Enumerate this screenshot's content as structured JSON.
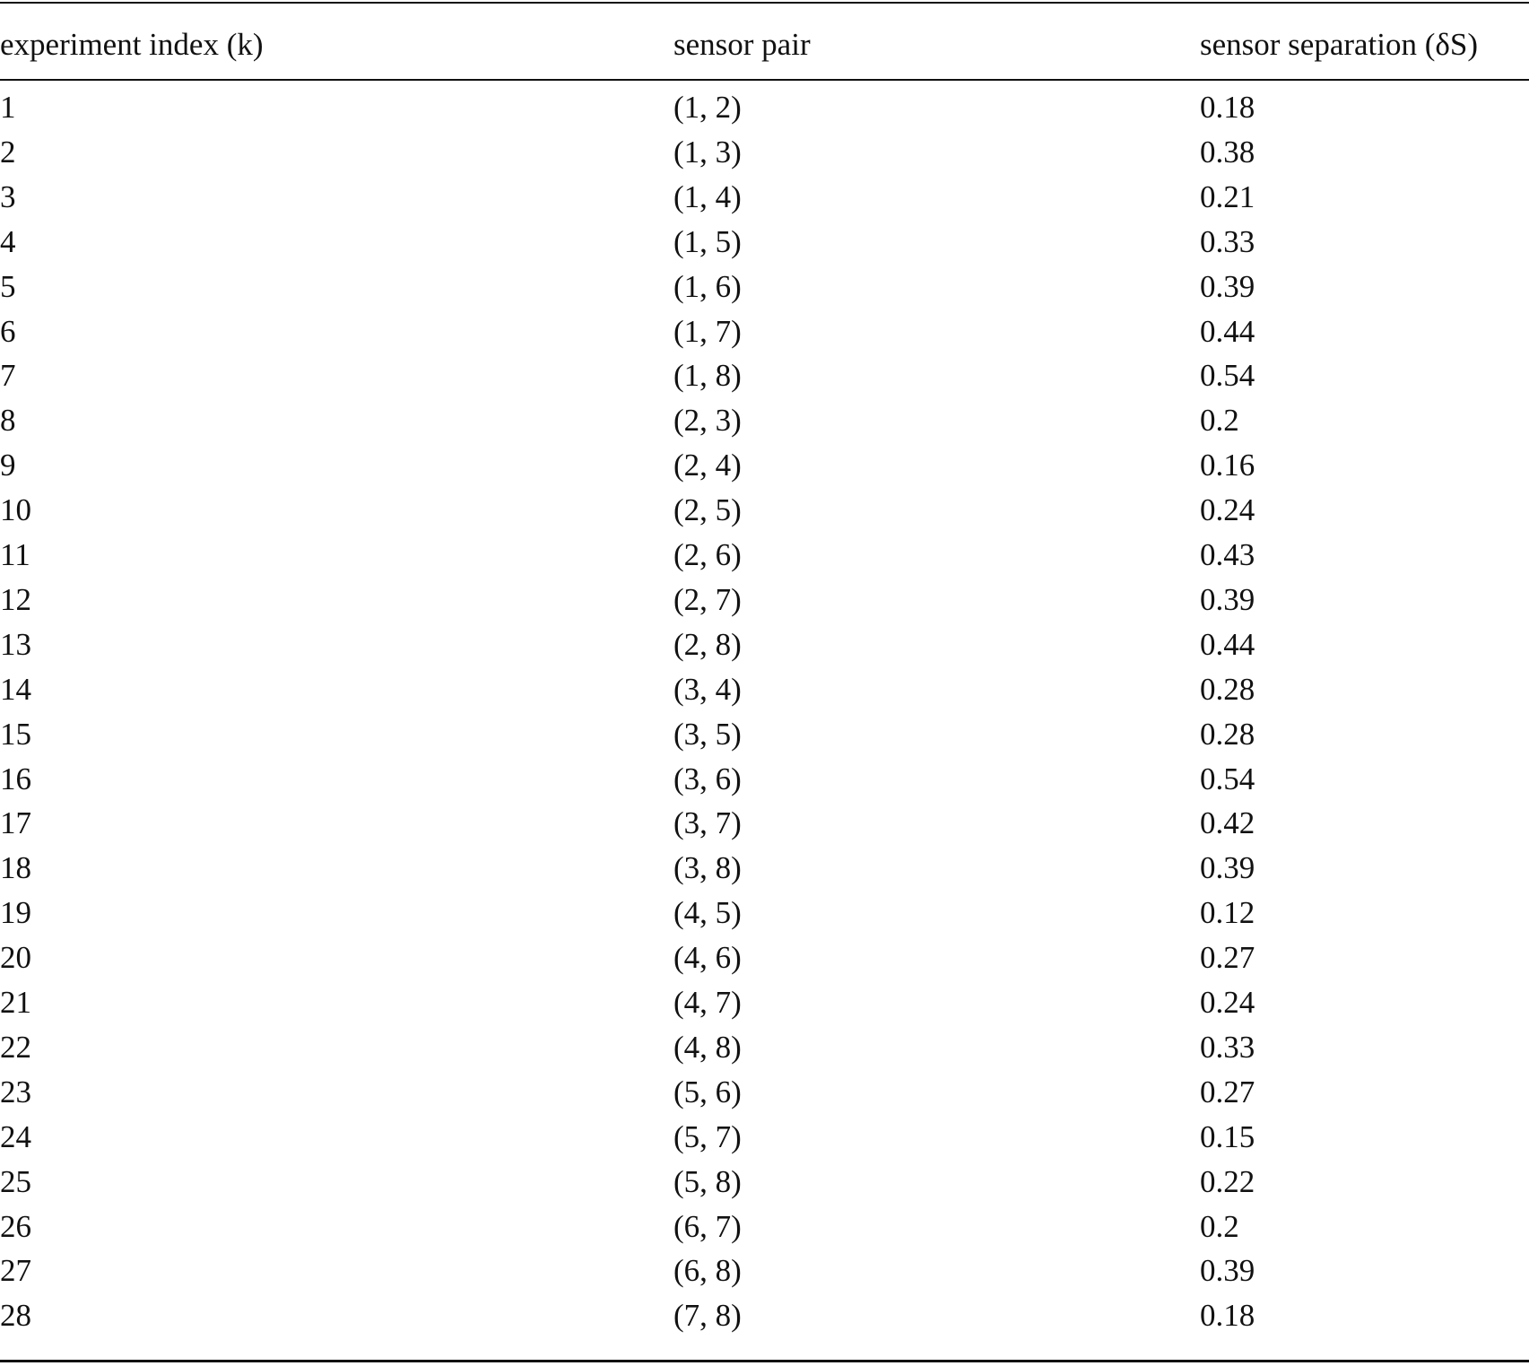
{
  "table": {
    "header": [
      "experiment index (k)",
      "sensor pair",
      "sensor separation (δS)"
    ],
    "rows": [
      [
        "1",
        "(1, 2)",
        "0.18"
      ],
      [
        "2",
        "(1, 3)",
        "0.38"
      ],
      [
        "3",
        "(1, 4)",
        "0.21"
      ],
      [
        "4",
        "(1, 5)",
        "0.33"
      ],
      [
        "5",
        "(1, 6)",
        "0.39"
      ],
      [
        "6",
        "(1, 7)",
        "0.44"
      ],
      [
        "7",
        "(1, 8)",
        "0.54"
      ],
      [
        "8",
        "(2, 3)",
        "0.2"
      ],
      [
        "9",
        "(2, 4)",
        "0.16"
      ],
      [
        "10",
        "(2, 5)",
        "0.24"
      ],
      [
        "11",
        "(2, 6)",
        "0.43"
      ],
      [
        "12",
        "(2, 7)",
        "0.39"
      ],
      [
        "13",
        "(2, 8)",
        "0.44"
      ],
      [
        "14",
        "(3, 4)",
        "0.28"
      ],
      [
        "15",
        "(3, 5)",
        "0.28"
      ],
      [
        "16",
        "(3, 6)",
        "0.54"
      ],
      [
        "17",
        "(3, 7)",
        "0.42"
      ],
      [
        "18",
        "(3, 8)",
        "0.39"
      ],
      [
        "19",
        "(4, 5)",
        "0.12"
      ],
      [
        "20",
        "(4, 6)",
        "0.27"
      ],
      [
        "21",
        "(4, 7)",
        "0.24"
      ],
      [
        "22",
        "(4, 8)",
        "0.33"
      ],
      [
        "23",
        "(5, 6)",
        "0.27"
      ],
      [
        "24",
        "(5, 7)",
        "0.15"
      ],
      [
        "25",
        "(5, 8)",
        "0.22"
      ],
      [
        "26",
        "(6, 7)",
        "0.2"
      ],
      [
        "27",
        "(6, 8)",
        "0.39"
      ],
      [
        "28",
        "(7, 8)",
        "0.18"
      ]
    ]
  }
}
